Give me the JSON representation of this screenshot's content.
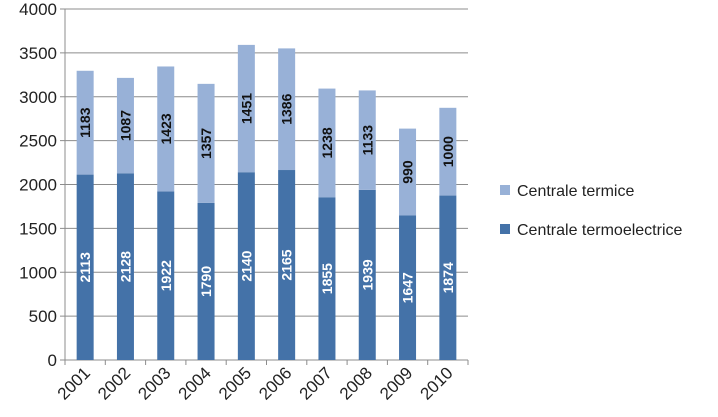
{
  "chart_data": {
    "type": "bar",
    "stacked": true,
    "categories": [
      "2001",
      "2002",
      "2003",
      "2004",
      "2005",
      "2006",
      "2007",
      "2008",
      "2009",
      "2010"
    ],
    "series": [
      {
        "name": "Centrale termoelectrice",
        "color": "#4472a8",
        "label_color": "#ffffff",
        "values": [
          2113,
          2128,
          1922,
          1790,
          2140,
          2165,
          1855,
          1939,
          1647,
          1874
        ]
      },
      {
        "name": "Centrale termice",
        "color": "#98b1d7",
        "label_color": "#111111",
        "values": [
          1183,
          1087,
          1423,
          1357,
          1451,
          1386,
          1238,
          1133,
          990,
          1000
        ]
      }
    ],
    "ylim": [
      0,
      4000
    ],
    "yticks": [
      0,
      500,
      1000,
      1500,
      2000,
      2500,
      3000,
      3500,
      4000
    ],
    "grid": true,
    "legend_position": "right",
    "legend_order": [
      "Centrale termice",
      "Centrale termoelectrice"
    ],
    "data_labels": "vertical"
  }
}
